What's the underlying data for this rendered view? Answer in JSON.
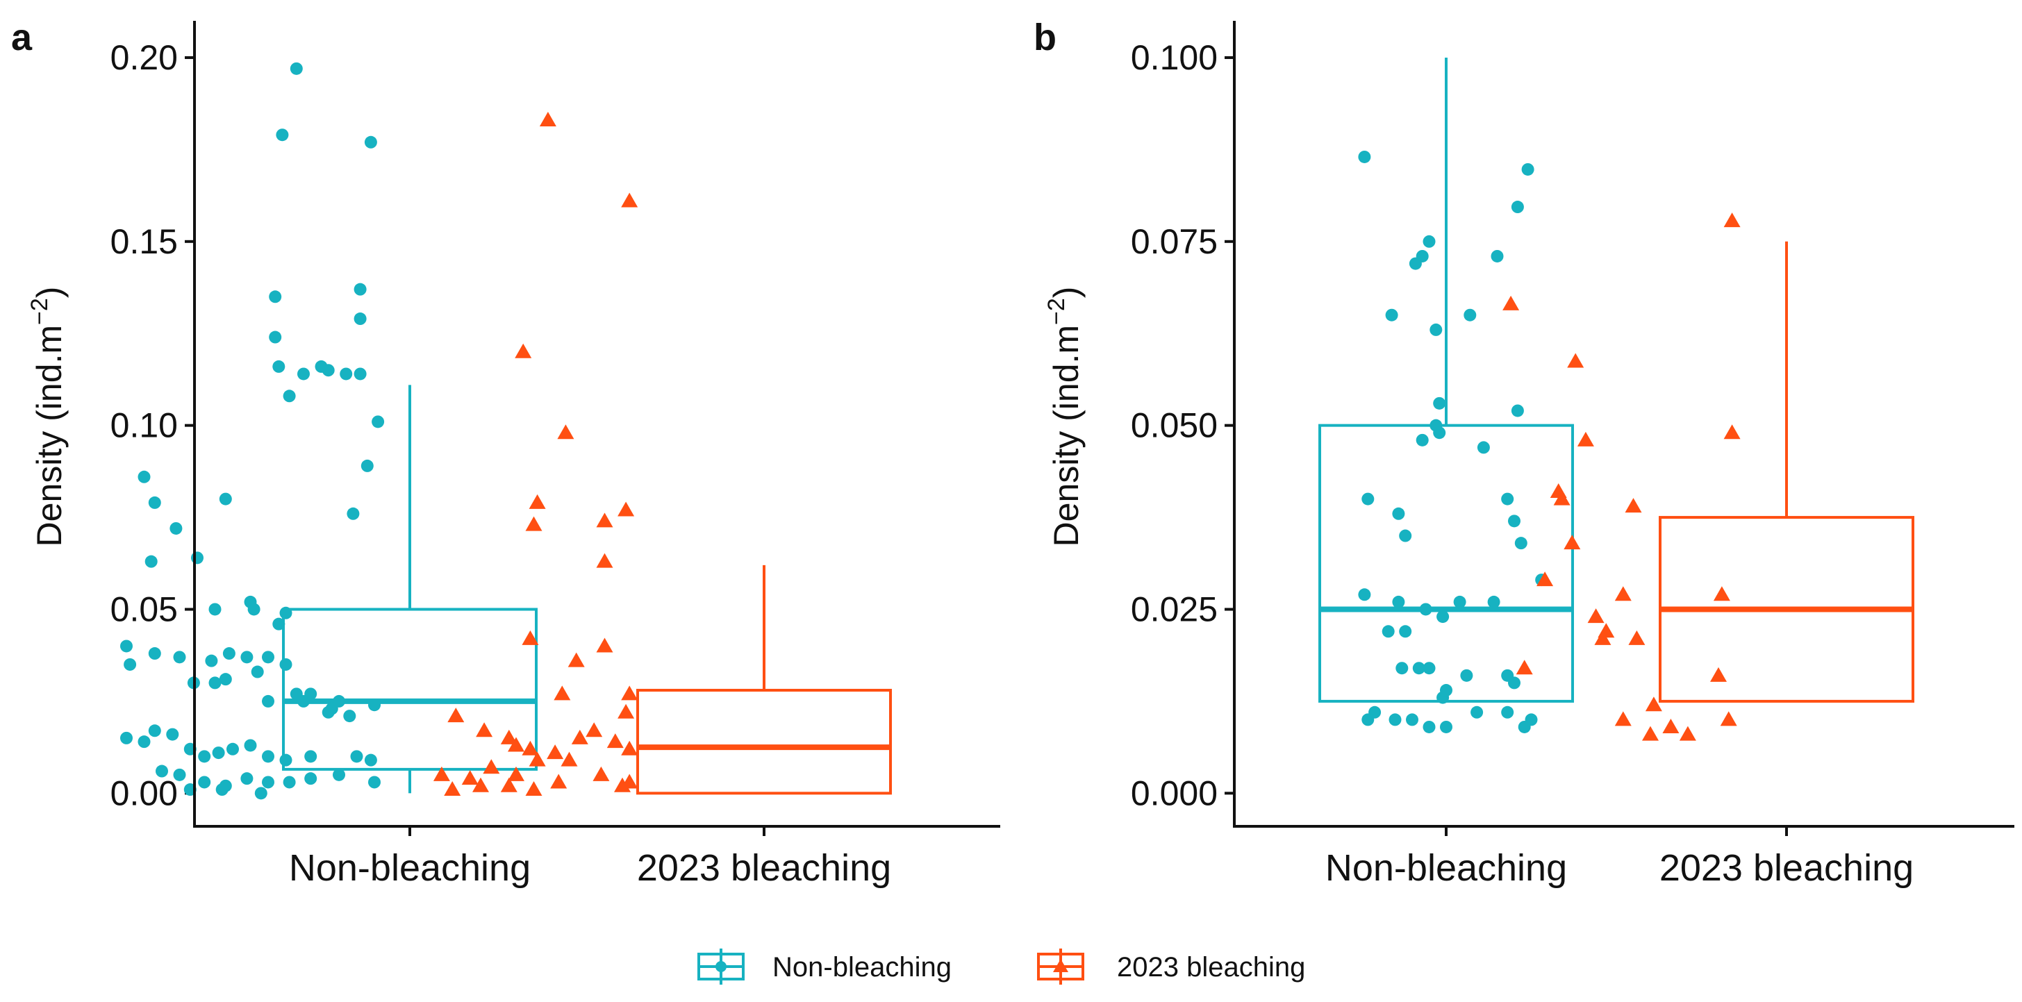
{
  "legend": [
    {
      "label": "Non-bleaching",
      "color": "#17B2C1",
      "shape": "circle"
    },
    {
      "label": "2023 bleaching",
      "color": "#FF4F12",
      "shape": "triangle"
    }
  ],
  "chart_data": [
    {
      "type": "box",
      "panel": "a",
      "ylabel": "Density (ind.m",
      "ylabel_sup": "−2",
      "ylabel_close": ")",
      "ylim": [
        -0.009,
        0.21
      ],
      "yticks": [
        0.0,
        0.05,
        0.1,
        0.15,
        0.2
      ],
      "ytick_labels": [
        "0.00",
        "0.05",
        "0.10",
        "0.15",
        "0.20"
      ],
      "categories": [
        "Non-bleaching",
        "2023 bleaching"
      ],
      "boxes": [
        {
          "name": "Non-bleaching",
          "color": "#17B2C1",
          "shape": "circle",
          "q1": 0.0065,
          "median": 0.025,
          "q3": 0.05,
          "whisker_low": 0.0,
          "whisker_high": 0.111
        },
        {
          "name": "2023 bleaching",
          "color": "#FF4F12",
          "shape": "triangle",
          "q1": 0.0,
          "median": 0.0125,
          "q3": 0.028,
          "whisker_low": 0.0,
          "whisker_high": 0.062
        }
      ],
      "points": [
        [
          [
            0.68,
            0.197
          ],
          [
            0.64,
            0.179
          ],
          [
            0.89,
            0.177
          ],
          [
            0.86,
            0.137
          ],
          [
            0.62,
            0.135
          ],
          [
            0.86,
            0.129
          ],
          [
            0.62,
            0.124
          ],
          [
            0.75,
            0.116
          ],
          [
            0.63,
            0.116
          ],
          [
            0.77,
            0.115
          ],
          [
            0.82,
            0.114
          ],
          [
            0.86,
            0.114
          ],
          [
            0.7,
            0.114
          ],
          [
            0.66,
            0.108
          ],
          [
            0.91,
            0.101
          ],
          [
            0.88,
            0.089
          ],
          [
            0.25,
            0.086
          ],
          [
            0.84,
            0.076
          ],
          [
            0.28,
            0.079
          ],
          [
            0.48,
            0.08
          ],
          [
            0.34,
            0.072
          ],
          [
            0.27,
            0.063
          ],
          [
            0.4,
            0.064
          ],
          [
            0.45,
            0.05
          ],
          [
            0.55,
            0.052
          ],
          [
            0.56,
            0.05
          ],
          [
            0.65,
            0.049
          ],
          [
            0.63,
            0.046
          ],
          [
            0.2,
            0.04
          ],
          [
            0.21,
            0.035
          ],
          [
            0.28,
            0.038
          ],
          [
            0.35,
            0.037
          ],
          [
            0.44,
            0.036
          ],
          [
            0.49,
            0.038
          ],
          [
            0.54,
            0.037
          ],
          [
            0.6,
            0.037
          ],
          [
            0.65,
            0.035
          ],
          [
            0.57,
            0.033
          ],
          [
            0.48,
            0.031
          ],
          [
            0.39,
            0.03
          ],
          [
            0.45,
            0.03
          ],
          [
            0.68,
            0.027
          ],
          [
            0.72,
            0.027
          ],
          [
            0.8,
            0.025
          ],
          [
            0.78,
            0.023
          ],
          [
            0.9,
            0.024
          ],
          [
            0.83,
            0.021
          ],
          [
            0.77,
            0.022
          ],
          [
            0.7,
            0.025
          ],
          [
            0.6,
            0.025
          ],
          [
            0.2,
            0.015
          ],
          [
            0.25,
            0.014
          ],
          [
            0.28,
            0.017
          ],
          [
            0.33,
            0.016
          ],
          [
            0.38,
            0.012
          ],
          [
            0.42,
            0.01
          ],
          [
            0.46,
            0.011
          ],
          [
            0.5,
            0.012
          ],
          [
            0.55,
            0.013
          ],
          [
            0.6,
            0.01
          ],
          [
            0.65,
            0.009
          ],
          [
            0.72,
            0.01
          ],
          [
            0.85,
            0.01
          ],
          [
            0.89,
            0.009
          ],
          [
            0.3,
            0.006
          ],
          [
            0.35,
            0.005
          ],
          [
            0.42,
            0.003
          ],
          [
            0.48,
            0.002
          ],
          [
            0.54,
            0.004
          ],
          [
            0.6,
            0.003
          ],
          [
            0.66,
            0.003
          ],
          [
            0.72,
            0.004
          ],
          [
            0.8,
            0.005
          ],
          [
            0.9,
            0.003
          ],
          [
            0.38,
            0.001
          ],
          [
            0.47,
            0.001
          ],
          [
            0.58,
            0.0
          ]
        ],
        [
          [
            1.39,
            0.183
          ],
          [
            1.62,
            0.161
          ],
          [
            1.32,
            0.12
          ],
          [
            1.44,
            0.098
          ],
          [
            1.36,
            0.079
          ],
          [
            1.61,
            0.077
          ],
          [
            1.35,
            0.073
          ],
          [
            1.55,
            0.074
          ],
          [
            1.55,
            0.063
          ],
          [
            1.34,
            0.042
          ],
          [
            1.55,
            0.04
          ],
          [
            1.47,
            0.036
          ],
          [
            1.43,
            0.027
          ],
          [
            1.62,
            0.027
          ],
          [
            1.61,
            0.022
          ],
          [
            1.13,
            0.021
          ],
          [
            1.21,
            0.017
          ],
          [
            1.28,
            0.015
          ],
          [
            1.3,
            0.013
          ],
          [
            1.34,
            0.012
          ],
          [
            1.41,
            0.011
          ],
          [
            1.48,
            0.015
          ],
          [
            1.52,
            0.017
          ],
          [
            1.58,
            0.014
          ],
          [
            1.62,
            0.012
          ],
          [
            1.09,
            0.005
          ],
          [
            1.17,
            0.004
          ],
          [
            1.23,
            0.007
          ],
          [
            1.3,
            0.005
          ],
          [
            1.36,
            0.009
          ],
          [
            1.45,
            0.009
          ],
          [
            1.54,
            0.005
          ],
          [
            1.62,
            0.003
          ],
          [
            1.12,
            0.001
          ],
          [
            1.2,
            0.002
          ],
          [
            1.28,
            0.002
          ],
          [
            1.35,
            0.001
          ],
          [
            1.42,
            0.003
          ],
          [
            1.6,
            0.002
          ]
        ]
      ]
    },
    {
      "type": "box",
      "panel": "b",
      "ylabel": "Density (ind.m",
      "ylabel_sup": "−2",
      "ylabel_close": ")",
      "ylim": [
        -0.0045,
        0.105
      ],
      "yticks": [
        0.0,
        0.025,
        0.05,
        0.075,
        0.1
      ],
      "ytick_labels": [
        "0.000",
        "0.025",
        "0.050",
        "0.075",
        "0.100"
      ],
      "categories": [
        "Non-bleaching",
        "2023 bleaching"
      ],
      "boxes": [
        {
          "name": "Non-bleaching",
          "color": "#17B2C1",
          "shape": "circle",
          "q1": 0.0125,
          "median": 0.025,
          "q3": 0.05,
          "whisker_low": 0.0125,
          "whisker_high": 0.1
        },
        {
          "name": "2023 bleaching",
          "color": "#FF4F12",
          "shape": "triangle",
          "q1": 0.0125,
          "median": 0.025,
          "q3": 0.0375,
          "whisker_low": 0.0125,
          "whisker_high": 0.075
        }
      ],
      "points": [
        [
          [
            0.76,
            0.0865
          ],
          [
            1.24,
            0.0848
          ],
          [
            1.21,
            0.0797
          ],
          [
            0.95,
            0.075
          ],
          [
            0.93,
            0.073
          ],
          [
            0.91,
            0.072
          ],
          [
            1.15,
            0.073
          ],
          [
            0.84,
            0.065
          ],
          [
            1.07,
            0.065
          ],
          [
            0.97,
            0.063
          ],
          [
            0.98,
            0.053
          ],
          [
            1.21,
            0.052
          ],
          [
            0.97,
            0.05
          ],
          [
            0.98,
            0.049
          ],
          [
            0.93,
            0.048
          ],
          [
            1.11,
            0.047
          ],
          [
            0.77,
            0.04
          ],
          [
            1.18,
            0.04
          ],
          [
            0.86,
            0.038
          ],
          [
            1.2,
            0.037
          ],
          [
            0.88,
            0.035
          ],
          [
            1.22,
            0.034
          ],
          [
            1.28,
            0.029
          ],
          [
            0.76,
            0.027
          ],
          [
            0.86,
            0.026
          ],
          [
            1.04,
            0.026
          ],
          [
            0.94,
            0.025
          ],
          [
            0.99,
            0.024
          ],
          [
            1.14,
            0.026
          ],
          [
            0.83,
            0.022
          ],
          [
            0.88,
            0.022
          ],
          [
            0.92,
            0.017
          ],
          [
            0.95,
            0.017
          ],
          [
            0.87,
            0.017
          ],
          [
            1.06,
            0.016
          ],
          [
            1.18,
            0.016
          ],
          [
            0.79,
            0.011
          ],
          [
            0.77,
            0.01
          ],
          [
            0.85,
            0.01
          ],
          [
            0.9,
            0.01
          ],
          [
            0.95,
            0.009
          ],
          [
            1.0,
            0.009
          ],
          [
            1.09,
            0.011
          ],
          [
            1.18,
            0.011
          ],
          [
            1.25,
            0.01
          ],
          [
            1.23,
            0.009
          ],
          [
            0.99,
            0.013
          ],
          [
            1.0,
            0.014
          ],
          [
            1.2,
            0.015
          ]
        ],
        [
          [
            1.84,
            0.0778
          ],
          [
            1.19,
            0.0665
          ],
          [
            1.38,
            0.0587
          ],
          [
            1.41,
            0.048
          ],
          [
            1.84,
            0.049
          ],
          [
            1.33,
            0.041
          ],
          [
            1.34,
            0.04
          ],
          [
            1.55,
            0.039
          ],
          [
            1.37,
            0.034
          ],
          [
            1.29,
            0.029
          ],
          [
            1.52,
            0.027
          ],
          [
            1.81,
            0.027
          ],
          [
            1.44,
            0.024
          ],
          [
            1.47,
            0.022
          ],
          [
            1.46,
            0.021
          ],
          [
            1.56,
            0.021
          ],
          [
            1.23,
            0.017
          ],
          [
            1.8,
            0.016
          ],
          [
            1.61,
            0.012
          ],
          [
            1.52,
            0.01
          ],
          [
            1.66,
            0.009
          ],
          [
            1.71,
            0.008
          ],
          [
            1.83,
            0.01
          ],
          [
            1.6,
            0.008
          ]
        ]
      ]
    }
  ]
}
